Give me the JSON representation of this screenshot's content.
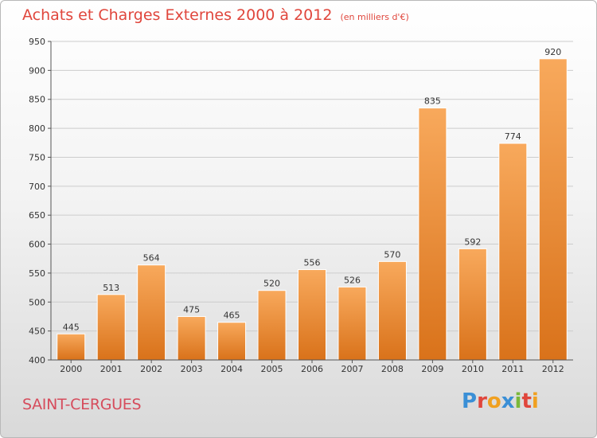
{
  "header": {
    "title": "Achats et Charges Externes 2000 à 2012",
    "subtitle": "(en milliers d'€)"
  },
  "commune": "SAINT-CERGUES",
  "logo": {
    "text": "Proxiti",
    "letters": [
      {
        "ch": "P",
        "color": "#3a8fd6"
      },
      {
        "ch": "r",
        "color": "#e0463c"
      },
      {
        "ch": "o",
        "color": "#f0a020"
      },
      {
        "ch": "x",
        "color": "#3a8fd6"
      },
      {
        "ch": "i",
        "color": "#7ab83a"
      },
      {
        "ch": "t",
        "color": "#e0463c"
      },
      {
        "ch": "i",
        "color": "#f0a020"
      }
    ]
  },
  "colors": {
    "bar_top": "#f8a95c",
    "bar_bottom": "#d9721a",
    "grid": "#cccccc",
    "axis": "#555555",
    "text": "#333333"
  },
  "chart_data": {
    "type": "bar",
    "categories": [
      "2000",
      "2001",
      "2002",
      "2003",
      "2004",
      "2005",
      "2006",
      "2007",
      "2008",
      "2009",
      "2010",
      "2011",
      "2012"
    ],
    "values": [
      445,
      513,
      564,
      475,
      465,
      520,
      556,
      526,
      570,
      835,
      592,
      774,
      920
    ],
    "value_labels": [
      "445",
      "513",
      "564",
      "475",
      "465",
      "520",
      "556",
      "526",
      "570",
      "835",
      "592",
      "774",
      "920"
    ],
    "ylim": [
      400,
      950
    ],
    "yticks": [
      400,
      450,
      500,
      550,
      600,
      650,
      700,
      750,
      800,
      850,
      900,
      950
    ],
    "ytick_labels": [
      "400",
      "450",
      "500",
      "550",
      "600",
      "650",
      "700",
      "750",
      "800",
      "850",
      "900",
      "950"
    ],
    "grid": true,
    "xlabel": "",
    "ylabel": ""
  }
}
